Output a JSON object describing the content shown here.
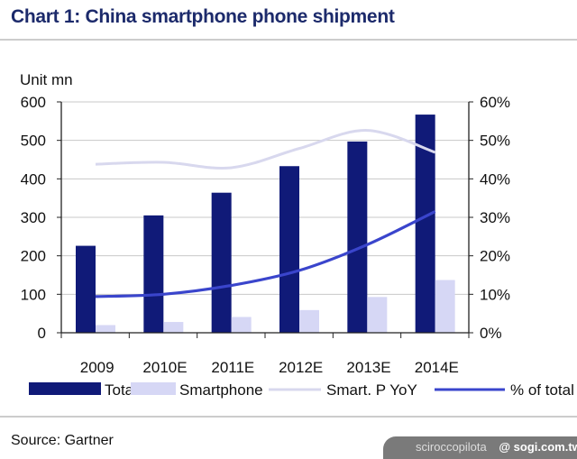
{
  "title": "Chart 1: China smartphone phone shipment",
  "source": "Source: Gartner",
  "watermark": {
    "user": "sciroccopilota",
    "site": "@ sogi.com.tw"
  },
  "colors": {
    "title": "#1c2a6b",
    "total": "#101a78",
    "smartphone": "#d6d7f5",
    "yoy": "#d8d8ee",
    "pct": "#3a45cc"
  },
  "chart_data": {
    "type": "bar",
    "title": "Chart 1: China smartphone phone shipment",
    "categories": [
      "2009",
      "2010E",
      "2011E",
      "2012E",
      "2013E",
      "2014E"
    ],
    "ylabel": "Unit mn",
    "ylim": [
      0,
      600
    ],
    "yticks": [
      "0",
      "100",
      "200",
      "300",
      "400",
      "500",
      "600"
    ],
    "y2lim": [
      0,
      60
    ],
    "y2ticks": [
      "0%",
      "10%",
      "20%",
      "30%",
      "40%",
      "50%",
      "60%"
    ],
    "grid": true,
    "legend": "bottom",
    "series": [
      {
        "name": "Total",
        "type": "bar",
        "axis": "left",
        "values": [
          226,
          305,
          364,
          433,
          497,
          567
        ]
      },
      {
        "name": "Smartphone",
        "type": "bar",
        "axis": "left",
        "values": [
          20,
          28,
          41,
          59,
          93,
          137
        ]
      },
      {
        "name": "Smart. P YoY",
        "type": "line",
        "axis": "right",
        "values": [
          43.8,
          44.3,
          42.9,
          47.9,
          52.6,
          46.9
        ]
      },
      {
        "name": "% of total",
        "type": "line",
        "axis": "right",
        "values": [
          9.4,
          10.0,
          12.3,
          16.2,
          22.9,
          31.5
        ]
      }
    ]
  }
}
